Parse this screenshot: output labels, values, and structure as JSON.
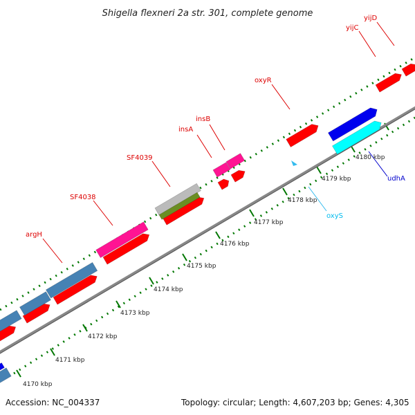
{
  "title": "Shigella flexneri 2a str. 301, complete genome",
  "footer": {
    "accession": "Accession: NC_004337",
    "summary": "Topology: circular; Length: 4,607,203 bp; Genes: 4,305"
  },
  "colors": {
    "red_gene": "#ff0000",
    "red_label": "#dd0000",
    "blue_gene": "#0000ee",
    "steel_gene": "#4682b4",
    "cyan_gene": "#00ffff",
    "magenta_gene": "#ff1493",
    "gray_gene": "#bbbbbb",
    "olive_gene": "#6b8e23",
    "backbone": "#888888",
    "tick": "#007700"
  },
  "kbp_labels": [
    "4170 kbp",
    "4171 kbp",
    "4172 kbp",
    "4173 kbp",
    "4174 kbp",
    "4175 kbp",
    "4176 kbp",
    "4177 kbp",
    "4178 kbp",
    "4179 kbp",
    "4180 kbp"
  ],
  "gene_labels": [
    {
      "name": "argH",
      "color": "#dd0000"
    },
    {
      "name": "SF4038",
      "color": "#dd0000"
    },
    {
      "name": "SF4039",
      "color": "#dd0000"
    },
    {
      "name": "insA",
      "color": "#dd0000"
    },
    {
      "name": "insB",
      "color": "#dd0000"
    },
    {
      "name": "oxyR",
      "color": "#dd0000"
    },
    {
      "name": "yijC",
      "color": "#dd0000"
    },
    {
      "name": "yijD",
      "color": "#dd0000"
    },
    {
      "name": "oxyS",
      "color": "#00bbee"
    },
    {
      "name": "udhA",
      "color": "#0000cc"
    }
  ]
}
